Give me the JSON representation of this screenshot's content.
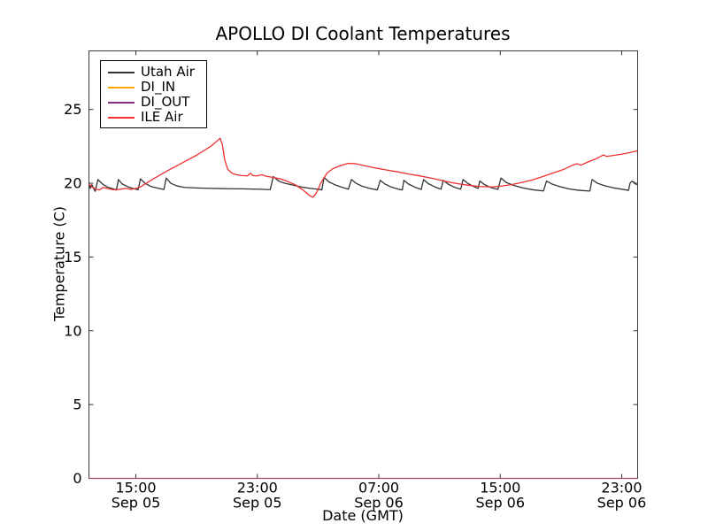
{
  "chart_data": {
    "type": "line",
    "title": "APOLLO DI Coolant Temperatures",
    "xlabel": "Date (GMT)",
    "ylabel": "Temperature (C)",
    "ylim": [
      0,
      28.97
    ],
    "y_ticks": [
      0,
      5,
      10,
      15,
      20,
      25
    ],
    "x_range_hours_since_sep05_0000": [
      11.91,
      48.05
    ],
    "x_ticks": [
      {
        "hours": 15,
        "time": "15:00",
        "date": "Sep 05"
      },
      {
        "hours": 23,
        "time": "23:00",
        "date": "Sep 05"
      },
      {
        "hours": 31,
        "time": "07:00",
        "date": "Sep 06"
      },
      {
        "hours": 39,
        "time": "15:00",
        "date": "Sep 06"
      },
      {
        "hours": 47,
        "time": "23:00",
        "date": "Sep 06"
      }
    ],
    "legend_position": "upper left",
    "frame_color": "#3a3a3a",
    "series": [
      {
        "name": "Utah Air",
        "color": "#333333",
        "opacity": 1,
        "points": [
          [
            11.91,
            20.05
          ],
          [
            12.0,
            19.65
          ],
          [
            12.1,
            19.9
          ],
          [
            12.32,
            19.45
          ],
          [
            12.5,
            20.25
          ],
          [
            12.8,
            19.95
          ],
          [
            13.1,
            19.75
          ],
          [
            13.5,
            19.62
          ],
          [
            13.72,
            19.55
          ],
          [
            13.85,
            20.25
          ],
          [
            14.1,
            19.95
          ],
          [
            14.5,
            19.75
          ],
          [
            14.9,
            19.62
          ],
          [
            15.15,
            19.55
          ],
          [
            15.3,
            20.3
          ],
          [
            15.6,
            20.0
          ],
          [
            16.0,
            19.78
          ],
          [
            16.5,
            19.65
          ],
          [
            16.85,
            19.58
          ],
          [
            17.0,
            20.35
          ],
          [
            17.3,
            20.0
          ],
          [
            17.7,
            19.82
          ],
          [
            18.2,
            19.72
          ],
          [
            19.0,
            19.68
          ],
          [
            20.0,
            19.65
          ],
          [
            21.0,
            19.63
          ],
          [
            22.0,
            19.62
          ],
          [
            23.0,
            19.6
          ],
          [
            23.85,
            19.57
          ],
          [
            24.05,
            20.45
          ],
          [
            24.4,
            20.15
          ],
          [
            24.8,
            20.0
          ],
          [
            25.3,
            19.88
          ],
          [
            25.9,
            19.75
          ],
          [
            26.5,
            19.65
          ],
          [
            27.1,
            19.58
          ],
          [
            27.25,
            19.55
          ],
          [
            27.4,
            20.4
          ],
          [
            27.7,
            20.1
          ],
          [
            28.1,
            19.9
          ],
          [
            28.6,
            19.72
          ],
          [
            29.0,
            19.6
          ],
          [
            29.2,
            20.25
          ],
          [
            29.5,
            20.0
          ],
          [
            29.9,
            19.8
          ],
          [
            30.4,
            19.65
          ],
          [
            30.9,
            19.55
          ],
          [
            31.1,
            20.2
          ],
          [
            31.4,
            19.95
          ],
          [
            31.8,
            19.75
          ],
          [
            32.3,
            19.6
          ],
          [
            32.55,
            19.55
          ],
          [
            32.65,
            20.2
          ],
          [
            32.95,
            19.95
          ],
          [
            33.4,
            19.72
          ],
          [
            33.8,
            19.58
          ],
          [
            33.95,
            20.25
          ],
          [
            34.25,
            19.98
          ],
          [
            34.7,
            19.75
          ],
          [
            35.1,
            19.6
          ],
          [
            35.25,
            20.2
          ],
          [
            35.55,
            19.95
          ],
          [
            36.0,
            19.72
          ],
          [
            36.4,
            19.6
          ],
          [
            36.55,
            20.25
          ],
          [
            36.85,
            20.0
          ],
          [
            37.2,
            19.8
          ],
          [
            37.55,
            19.65
          ],
          [
            37.65,
            20.15
          ],
          [
            37.95,
            19.92
          ],
          [
            38.4,
            19.7
          ],
          [
            38.85,
            19.58
          ],
          [
            39.05,
            20.35
          ],
          [
            39.4,
            20.05
          ],
          [
            39.9,
            19.85
          ],
          [
            40.5,
            19.68
          ],
          [
            41.2,
            19.55
          ],
          [
            41.85,
            19.48
          ],
          [
            42.05,
            20.15
          ],
          [
            42.4,
            19.95
          ],
          [
            42.9,
            19.78
          ],
          [
            43.5,
            19.62
          ],
          [
            44.2,
            19.52
          ],
          [
            44.9,
            19.47
          ],
          [
            45.05,
            20.25
          ],
          [
            45.4,
            20.0
          ],
          [
            45.9,
            19.82
          ],
          [
            46.5,
            19.68
          ],
          [
            47.1,
            19.58
          ],
          [
            47.45,
            19.52
          ],
          [
            47.55,
            20.0
          ],
          [
            47.65,
            20.12
          ],
          [
            47.8,
            20.1
          ],
          [
            47.9,
            19.95
          ],
          [
            48.0,
            19.9
          ]
        ]
      },
      {
        "name": "DI_IN",
        "color": "#ffa500",
        "opacity": 0.7,
        "points": [
          [
            11.91,
            0
          ],
          [
            48.05,
            0
          ]
        ]
      },
      {
        "name": "DI_OUT",
        "color": "#862d86",
        "opacity": 0.7,
        "points": [
          [
            11.91,
            0
          ],
          [
            48.05,
            0
          ]
        ]
      },
      {
        "name": "ILE Air",
        "color": "#f03030",
        "opacity": 1,
        "points": [
          [
            11.91,
            19.95
          ],
          [
            12.1,
            19.75
          ],
          [
            12.35,
            19.6
          ],
          [
            12.6,
            19.55
          ],
          [
            12.85,
            19.72
          ],
          [
            13.1,
            19.65
          ],
          [
            13.4,
            19.58
          ],
          [
            13.7,
            19.55
          ],
          [
            14.0,
            19.6
          ],
          [
            14.35,
            19.65
          ],
          [
            14.7,
            19.58
          ],
          [
            15.0,
            19.65
          ],
          [
            15.3,
            19.75
          ],
          [
            16.0,
            20.2
          ],
          [
            17.0,
            20.8
          ],
          [
            18.0,
            21.35
          ],
          [
            19.0,
            21.9
          ],
          [
            20.0,
            22.55
          ],
          [
            20.55,
            23.05
          ],
          [
            20.7,
            22.6
          ],
          [
            20.85,
            21.6
          ],
          [
            21.05,
            20.95
          ],
          [
            21.3,
            20.7
          ],
          [
            21.6,
            20.58
          ],
          [
            22.0,
            20.52
          ],
          [
            22.35,
            20.5
          ],
          [
            22.55,
            20.68
          ],
          [
            22.7,
            20.52
          ],
          [
            23.0,
            20.5
          ],
          [
            23.3,
            20.58
          ],
          [
            23.55,
            20.48
          ],
          [
            24.0,
            20.4
          ],
          [
            24.5,
            20.3
          ],
          [
            25.0,
            20.12
          ],
          [
            25.5,
            19.9
          ],
          [
            26.0,
            19.55
          ],
          [
            26.4,
            19.2
          ],
          [
            26.65,
            19.05
          ],
          [
            26.9,
            19.35
          ],
          [
            27.2,
            20.05
          ],
          [
            27.6,
            20.7
          ],
          [
            28.0,
            21.0
          ],
          [
            28.5,
            21.2
          ],
          [
            29.0,
            21.35
          ],
          [
            29.5,
            21.32
          ],
          [
            30.0,
            21.2
          ],
          [
            30.7,
            21.05
          ],
          [
            31.4,
            20.92
          ],
          [
            32.2,
            20.78
          ],
          [
            33.0,
            20.62
          ],
          [
            33.8,
            20.48
          ],
          [
            34.6,
            20.32
          ],
          [
            35.4,
            20.12
          ],
          [
            36.2,
            19.97
          ],
          [
            37.0,
            19.85
          ],
          [
            37.7,
            19.78
          ],
          [
            38.4,
            19.75
          ],
          [
            39.0,
            19.8
          ],
          [
            39.7,
            19.9
          ],
          [
            40.4,
            20.05
          ],
          [
            41.1,
            20.22
          ],
          [
            41.8,
            20.45
          ],
          [
            42.5,
            20.7
          ],
          [
            43.2,
            20.95
          ],
          [
            43.9,
            21.28
          ],
          [
            44.1,
            21.32
          ],
          [
            44.3,
            21.22
          ],
          [
            44.8,
            21.45
          ],
          [
            45.3,
            21.65
          ],
          [
            45.8,
            21.92
          ],
          [
            46.0,
            21.82
          ],
          [
            46.4,
            21.88
          ],
          [
            46.9,
            21.95
          ],
          [
            47.4,
            22.05
          ],
          [
            48.05,
            22.2
          ]
        ]
      }
    ]
  }
}
